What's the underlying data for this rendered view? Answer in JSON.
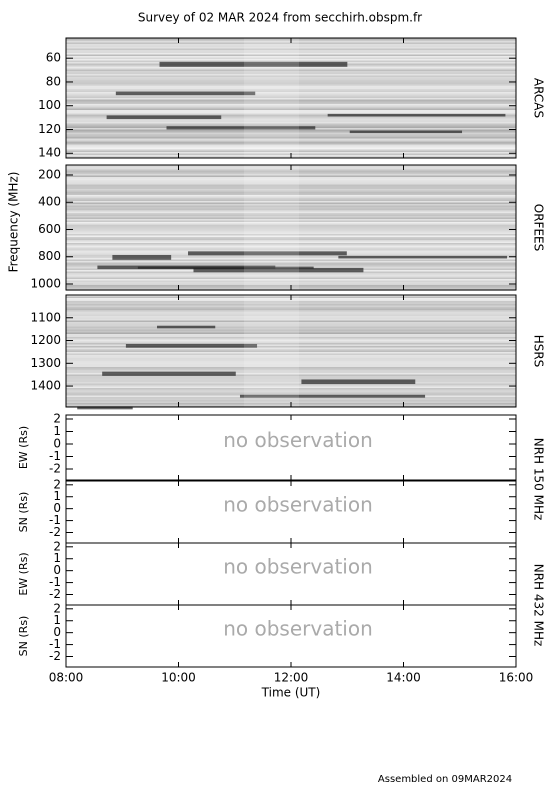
{
  "title": "Survey of 02 MAR 2024 from secchirh.obspm.fr",
  "footer": "Assembled on 09MAR2024",
  "frequency_label": "Frequency (MHz)",
  "xlabel": "Time (UT)",
  "xlim": [
    8,
    16
  ],
  "xticks": [
    {
      "value": 8,
      "label": "08:00"
    },
    {
      "value": 10,
      "label": "10:00"
    },
    {
      "value": 12,
      "label": "12:00"
    },
    {
      "value": 14,
      "label": "14:00"
    },
    {
      "value": 16,
      "label": "16:00"
    }
  ],
  "chart_data": [
    {
      "type": "spectrogram",
      "name": "ARCAS",
      "inverted": true,
      "ylim": [
        43,
        144
      ],
      "yticks": [
        60,
        80,
        100,
        120,
        140
      ]
    },
    {
      "type": "spectrogram",
      "name": "ORFEES",
      "inverted": true,
      "ylim": [
        127,
        1044
      ],
      "yticks": [
        200,
        400,
        600,
        800,
        1000
      ]
    },
    {
      "type": "spectrogram",
      "name": "HSRS",
      "inverted": true,
      "ylim": [
        1000,
        1492
      ],
      "yticks": [
        1100,
        1200,
        1300,
        1400
      ]
    },
    {
      "type": "empty",
      "name": "NRH 150 MHz",
      "ylabel": "EW (Rs)",
      "annotation": "no observation",
      "ylim": [
        -2.88,
        2.32
      ],
      "yticks": [
        -2,
        -1,
        0,
        1,
        2
      ]
    },
    {
      "type": "empty",
      "ylabel": "SN (Rs)",
      "annotation": "no observation",
      "ylim": [
        -2.88,
        2.32
      ],
      "yticks": [
        -2,
        -1,
        0,
        1,
        2
      ]
    },
    {
      "type": "empty",
      "name": "NRH 432 MHz",
      "ylabel": "EW (Rs)",
      "annotation": "no observation",
      "ylim": [
        -2.88,
        2.32
      ],
      "yticks": [
        -2,
        -1,
        0,
        1,
        2
      ]
    },
    {
      "type": "empty",
      "ylabel": "SN (Rs)",
      "annotation": "no observation",
      "ylim": [
        -2.88,
        2.32
      ],
      "yticks": [
        -2,
        -1,
        0,
        1,
        2
      ]
    }
  ]
}
